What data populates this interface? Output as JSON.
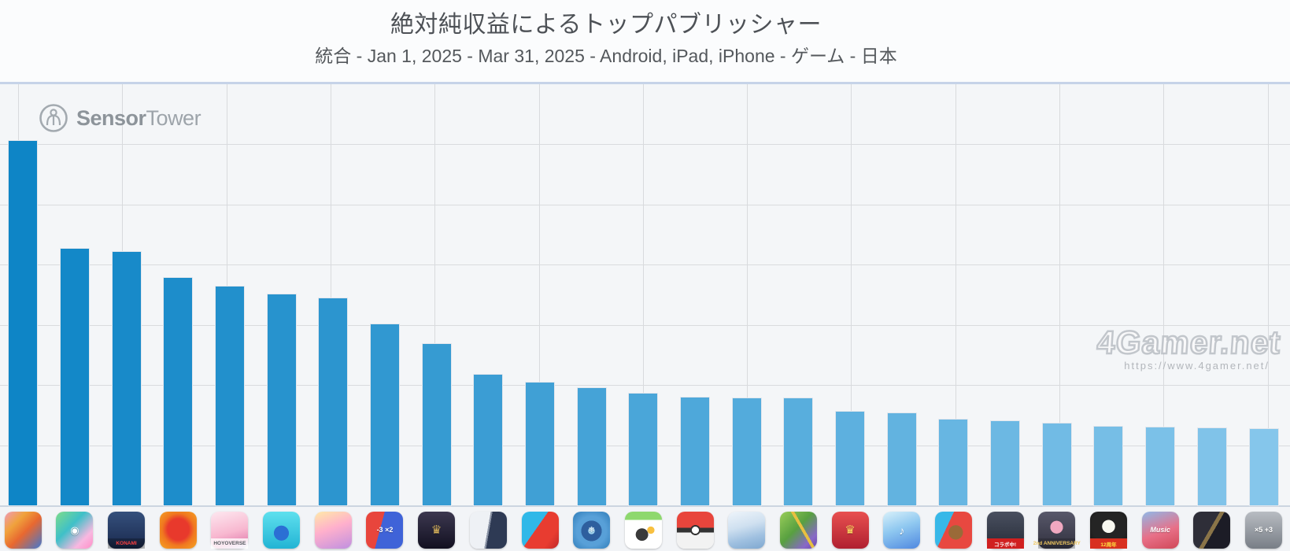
{
  "header": {
    "title": "絶対純収益によるトップパブリッシャー",
    "subtitle": "統合 - Jan 1, 2025 - Mar 31, 2025 - Android, iPad, iPhone - ゲーム - 日本"
  },
  "branding": {
    "logo_bold": "Sensor",
    "logo_light": "Tower"
  },
  "watermark": {
    "text": "4Gamer.net",
    "url": "https://www.4gamer.net/"
  },
  "chart_data": {
    "type": "bar",
    "title": "絶対純収益によるトップパブリッシャー",
    "subtitle": "統合 - Jan 1, 2025 - Mar 31, 2025 - Android, iPad, iPhone - ゲーム - 日本",
    "xlabel": "",
    "ylabel": "",
    "y_axis_labels_visible": false,
    "unit": "percent_of_rank1_revenue",
    "ylim": [
      0,
      115.6
    ],
    "grid": true,
    "legend": false,
    "categories": [
      "dragon-ball-goku",
      "pokemon-trading-cards",
      "konami-baseball-team",
      "red-flame-monster",
      "hoyoverse-pink-girl",
      "blue-slime-sneaker",
      "uma-musume-idol",
      "math-flags-minus3-x2",
      "dark-gold-saber",
      "monochrome-duo",
      "dragon-vs-red",
      "frozen-blue-globe",
      "mickey-tsum-tsum",
      "pokeball",
      "white-hair-blue-girl",
      "garden-pull-pin",
      "red-king-crown",
      "teal-hair-singers",
      "cartoon-bear",
      "samurai-collab",
      "pink-hair-2nd-anniversary",
      "cat-helmet-12shunen",
      "red-hair-music",
      "dark-warriors",
      "x5-plus3-tiles"
    ],
    "values": [
      100,
      70.4,
      69.5,
      62.4,
      60.0,
      57.9,
      56.8,
      49.7,
      44.3,
      35.9,
      33.7,
      32.2,
      30.7,
      29.6,
      29.4,
      29.4,
      25.7,
      25.3,
      23.5,
      23.1,
      22.5,
      21.6,
      21.4,
      21.2,
      21.0
    ],
    "bar_color_start": "#0e85c6",
    "bar_color_end": "#85c6eb"
  },
  "icons": [
    {
      "name": "goku-dragon-ball-icon",
      "bg": "linear-gradient(135deg,#f09ab8 0%,#f0a23c 30%,#e86830 55%,#3f78d2 100%)",
      "glyph": "",
      "glyph_color": "#fff",
      "glyph_size": 12
    },
    {
      "name": "pokemon-card-icon",
      "bg": "linear-gradient(135deg,#7ddc8a 0%,#3fc0c8 40%,#f8b8e0 75%,#ff8ec8 100%)",
      "glyph": "◉",
      "glyph_color": "#ffffff",
      "glyph_size": 13
    },
    {
      "name": "konami-baseball-icon",
      "bg": "linear-gradient(180deg,#35507c 0%,#22355c 70%,#15233f 100%)",
      "glyph": "",
      "band_text": "KONAMI",
      "band_bg": "rgba(0,0,0,.25)",
      "band_color": "#ff4040"
    },
    {
      "name": "flame-monster-icon",
      "bg": "radial-gradient(circle at 50% 48%,#e8392c 0 40%,#f07820 60%,#f5a623 100%)",
      "glyph": "",
      "glyph_color": "#fff",
      "glyph_size": 12
    },
    {
      "name": "hoyoverse-pink-girl-icon",
      "bg": "linear-gradient(165deg,#fde8f0 0%,#f8b8d0 55%,#e88fb8 80%,#c8d4f8 100%)",
      "glyph": "",
      "band_text": "HOYOVERSE",
      "band_bg": "rgba(255,255,255,.8)",
      "band_color": "#555a60"
    },
    {
      "name": "blue-slime-icon",
      "bg": "radial-gradient(circle at 50% 58%,#2b6fd4 0 26%,rgba(0,0,0,0) 27%),linear-gradient(180deg,#5fe0ee 0%,#22b4d4 100%)",
      "glyph": "",
      "glyph_color": "#fff",
      "glyph_size": 12
    },
    {
      "name": "uma-musume-girl-icon",
      "bg": "linear-gradient(160deg,#ffe9a8 0%,#ffb0cc 45%,#c090e0 100%)",
      "glyph": "",
      "glyph_color": "#fff",
      "glyph_size": 12
    },
    {
      "name": "math-flags-icon",
      "bg": "linear-gradient(105deg,#e8453c 0 40%,#3f63d8 40%)",
      "glyph": "-3 ×2",
      "glyph_color": "#ffffff",
      "glyph_size": 9
    },
    {
      "name": "dark-gold-saber-icon",
      "bg": "linear-gradient(180deg,#3c3850 0%,#121020 100%)",
      "glyph": "♛",
      "glyph_color": "#d9b35c",
      "glyph_size": 15
    },
    {
      "name": "monochrome-duo-icon",
      "bg": "linear-gradient(100deg,#eef1f5 0 48%,#8a93a5 48% 52%,#2e3a54 52%)",
      "glyph": "",
      "glyph_color": "#fff",
      "glyph_size": 12
    },
    {
      "name": "dragon-puzzle-icon",
      "bg": "linear-gradient(125deg,#30b8e8 0 42%,#e83c30 42% 75%,#c02828 100%)",
      "glyph": "",
      "glyph_color": "#fff",
      "glyph_size": 12
    },
    {
      "name": "frozen-globe-icon",
      "bg": "radial-gradient(circle at 50% 52%,#9fd4f0 0 12%,#2e5f9e 13% 38%,#58a0d8 39% 55%,#2f7cb8 100%)",
      "glyph": "❄",
      "glyph_color": "#eaf6ff",
      "glyph_size": 10
    },
    {
      "name": "mickey-tsum-icon",
      "bg": "radial-gradient(circle at 46% 62%,#3a3a3a 0 20%,rgba(0,0,0,0) 21%),radial-gradient(circle at 70% 50%,#f8c040 0 11%,rgba(0,0,0,0) 12%),linear-gradient(180deg,#8ed86e 0 22%,#ffffff 22%)",
      "glyph": "",
      "glyph_color": "#fff",
      "glyph_size": 12
    },
    {
      "name": "pokeball-icon",
      "bg": "radial-gradient(circle at 50% 50%,#ffffff 0 13%,#333333 14% 19%,rgba(0,0,0,0) 20%),linear-gradient(180deg,#e8453c 0 44%,#333333 44% 56%,#f2f2f2 56%)",
      "glyph": "",
      "glyph_color": "#fff",
      "glyph_size": 12
    },
    {
      "name": "white-hair-girl-icon",
      "bg": "linear-gradient(165deg,#eef4fa 0%,#cfe0f0 40%,#9fc0e0 70%,#7fa8d0 100%)",
      "glyph": "",
      "glyph_color": "#fff",
      "glyph_size": 12
    },
    {
      "name": "garden-pin-icon",
      "bg": "linear-gradient(60deg,rgba(0,0,0,0) 0 55%,#e8c040 55% 61%,rgba(0,0,0,0) 61%),linear-gradient(135deg,#9ace5a 0%,#58a040 45%,#8868c8 80%,#6a48a8 100%)",
      "glyph": "",
      "glyph_color": "#fff",
      "glyph_size": 12
    },
    {
      "name": "king-crown-icon",
      "bg": "linear-gradient(180deg,#e85050 0%,#b02030 100%)",
      "glyph": "♛",
      "glyph_color": "#ffd960",
      "glyph_size": 15
    },
    {
      "name": "teal-singer-icon",
      "bg": "linear-gradient(160deg,#d8f0fa 0%,#8fc8f0 45%,#4f88e0 100%)",
      "glyph": "♪",
      "glyph_color": "#ffffff",
      "glyph_size": 14
    },
    {
      "name": "cartoon-bear-icon",
      "bg": "radial-gradient(circle at 56% 56%,#9a6a38 0 24%,rgba(0,0,0,0) 25%),linear-gradient(115deg,#38b8e8 0 35%,#e84840 35%)",
      "glyph": "",
      "glyph_color": "#fff",
      "glyph_size": 12
    },
    {
      "name": "samurai-collab-icon",
      "bg": "linear-gradient(180deg,#4a5060 0%,#262c38 100%)",
      "glyph": "",
      "band_text": "コラボ中!",
      "band_bg": "#d02020",
      "band_color": "#ffffff"
    },
    {
      "name": "pink-hair-anniversary-icon",
      "bg": "radial-gradient(circle at 50% 42%,#f0a8c0 0 22%,rgba(0,0,0,0) 23%),linear-gradient(180deg,#58586a 0%,#31313f 100%)",
      "glyph": "",
      "band_text": "2nd ANNIVERSARY",
      "band_bg": "rgba(20,20,20,.25)",
      "band_color": "#f0c860"
    },
    {
      "name": "cat-helmet-icon",
      "bg": "radial-gradient(circle at 50% 40%,#f8f8f0 0 22%,#242424 23% 58%,#111111 100%)",
      "glyph": "",
      "band_text": "12周年",
      "band_bg": "#d83020",
      "band_color": "#ffe040"
    },
    {
      "name": "redhead-music-icon",
      "bg": "linear-gradient(160deg,#90b8e8 0%,#e87088 55%,#d04858 100%)",
      "glyph": "Music",
      "glyph_color": "#ffffff",
      "glyph_size": 9,
      "glyph_italic": true
    },
    {
      "name": "dark-warriors-icon",
      "bg": "linear-gradient(120deg,#2e2e38 0 46%,#8a7448 46% 54%,#1c1c26 54%)",
      "glyph": "",
      "glyph_color": "#fff",
      "glyph_size": 12
    },
    {
      "name": "multiplier-tiles-icon",
      "bg": "linear-gradient(180deg,#b8bcc2 0%,#787e86 100%)",
      "glyph": "×5 +3",
      "glyph_color": "#ffffff",
      "glyph_size": 9
    }
  ]
}
